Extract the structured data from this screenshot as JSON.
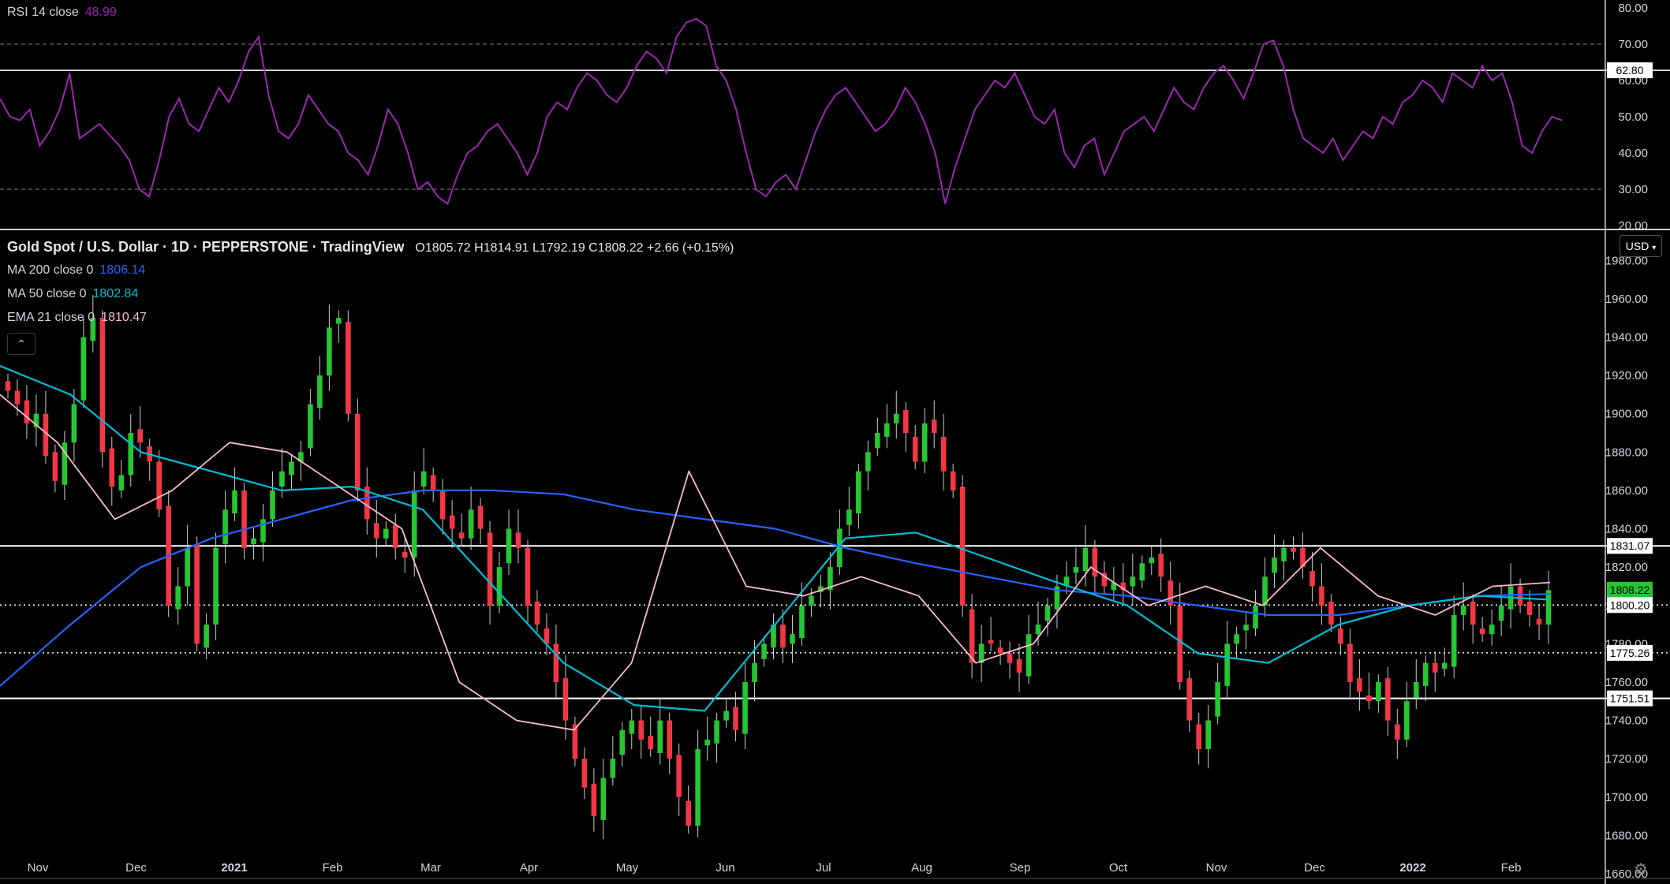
{
  "rsi_panel": {
    "label": "RSI 14 close",
    "value": "48.99",
    "value_color": "#9c27b0",
    "line_color": "#9c27b0",
    "scale": [
      "80.00",
      "70.00",
      "60.00",
      "50.00",
      "40.00",
      "30.00",
      "20.00"
    ],
    "level_tag": "62.80"
  },
  "price_panel": {
    "title": "Gold Spot / U.S. Dollar · 1D · PEPPERSTONE · TradingView",
    "ohlc": "O1805.72 H1814.91 L1792.19 C1808.22 +2.66 (+0.15%)",
    "currency_button": "USD",
    "collapse_icon": "chevron-up-icon",
    "settings_icon": "gear-icon",
    "indicators": [
      {
        "label": "MA 200 close 0",
        "value": "1806.14",
        "color": "#2962ff"
      },
      {
        "label": "MA 50 close 0",
        "value": "1802.84",
        "color": "#00bcd4"
      },
      {
        "label": "EMA 21 close 0",
        "value": "1810.47",
        "color": "#f8bbd0"
      }
    ],
    "scale": [
      "1980.00",
      "1960.00",
      "1940.00",
      "1920.00",
      "1900.00",
      "1880.00",
      "1860.00",
      "1840.00",
      "1820.00",
      "1800.00",
      "1780.00",
      "1760.00",
      "1740.00",
      "1720.00",
      "1700.00",
      "1680.00",
      "1660.00"
    ],
    "price_tags": [
      {
        "text": "1831.07",
        "bg": "#ffffff",
        "fg": "#000000"
      },
      {
        "text": "1808.22",
        "bg": "#26c632",
        "fg": "#000000"
      },
      {
        "text": "1800.20",
        "bg": "#ffffff",
        "fg": "#000000"
      },
      {
        "text": "1775.26",
        "bg": "#ffffff",
        "fg": "#000000"
      },
      {
        "text": "1751.51",
        "bg": "#ffffff",
        "fg": "#000000"
      }
    ],
    "up_color": "#26c632",
    "down_color": "#f23645"
  },
  "time_axis": [
    "Nov",
    "Dec",
    "2021",
    "Feb",
    "Mar",
    "Apr",
    "May",
    "Jun",
    "Jul",
    "Aug",
    "Sep",
    "Oct",
    "Nov",
    "Dec",
    "2022",
    "Feb"
  ],
  "chart_data": [
    {
      "type": "line",
      "name": "RSI 14 close",
      "ylim": [
        20,
        80
      ],
      "levels": {
        "upper": 70,
        "lower": 30,
        "marked": 62.8
      },
      "grid": false,
      "values": [
        55,
        50,
        49,
        52,
        42,
        46,
        52,
        62,
        44,
        46,
        48,
        45,
        42,
        38,
        30,
        28,
        38,
        50,
        55,
        48,
        46,
        52,
        58,
        54,
        60,
        68,
        72,
        56,
        46,
        44,
        48,
        56,
        52,
        48,
        46,
        40,
        38,
        34,
        42,
        52,
        48,
        40,
        30,
        32,
        28,
        26,
        34,
        40,
        42,
        46,
        48,
        44,
        40,
        34,
        40,
        50,
        54,
        52,
        58,
        62,
        60,
        56,
        54,
        58,
        64,
        68,
        66,
        62,
        72,
        76,
        77,
        75,
        64,
        60,
        52,
        40,
        30,
        28,
        32,
        34,
        30,
        38,
        46,
        52,
        56,
        58,
        54,
        50,
        46,
        48,
        52,
        58,
        54,
        48,
        40,
        26,
        36,
        44,
        52,
        56,
        60,
        58,
        62,
        56,
        50,
        48,
        52,
        40,
        36,
        42,
        44,
        34,
        40,
        46,
        48,
        50,
        46,
        52,
        58,
        54,
        52,
        58,
        62,
        64,
        60,
        55,
        62,
        70,
        71,
        64,
        52,
        44,
        42,
        40,
        44,
        38,
        42,
        46,
        44,
        50,
        48,
        54,
        56,
        60,
        58,
        54,
        62,
        60,
        58,
        64,
        60,
        62,
        54,
        42,
        40,
        46,
        50,
        49
      ]
    },
    {
      "type": "candlestick",
      "name": "Gold Spot / U.S. Dollar",
      "ylim": [
        1660,
        1990
      ],
      "close": [
        1912,
        1905,
        1895,
        1900,
        1878,
        1865,
        1885,
        1905,
        1940,
        1950,
        1880,
        1862,
        1868,
        1890,
        1885,
        1875,
        1850,
        1800,
        1810,
        1830,
        1780,
        1790,
        1830,
        1850,
        1860,
        1830,
        1835,
        1845,
        1860,
        1870,
        1875,
        1880,
        1905,
        1920,
        1945,
        1950,
        1900,
        1860,
        1845,
        1835,
        1840,
        1830,
        1825,
        1860,
        1870,
        1860,
        1845,
        1840,
        1835,
        1850,
        1840,
        1800,
        1820,
        1840,
        1830,
        1800,
        1790,
        1780,
        1760,
        1740,
        1720,
        1705,
        1690,
        1710,
        1720,
        1735,
        1740,
        1730,
        1725,
        1740,
        1720,
        1700,
        1685,
        1725,
        1730,
        1740,
        1745,
        1735,
        1760,
        1770,
        1780,
        1790,
        1778,
        1785,
        1800,
        1805,
        1810,
        1820,
        1840,
        1850,
        1870,
        1880,
        1890,
        1895,
        1900,
        1890,
        1875,
        1895,
        1890,
        1870,
        1860,
        1800,
        1770,
        1780,
        1780,
        1775,
        1770,
        1765,
        1785,
        1790,
        1800,
        1810,
        1815,
        1820,
        1830,
        1815,
        1810,
        1812,
        1808,
        1815,
        1822,
        1825,
        1815,
        1800,
        1760,
        1740,
        1725,
        1740,
        1760,
        1780,
        1785,
        1790,
        1800,
        1815,
        1825,
        1830,
        1828,
        1820,
        1810,
        1800,
        1790,
        1780,
        1760,
        1755,
        1750,
        1760,
        1740,
        1730,
        1750,
        1760,
        1770,
        1765,
        1770,
        1795,
        1800,
        1790,
        1785,
        1790,
        1800,
        1810,
        1800,
        1795,
        1790,
        1808
      ]
    },
    {
      "type": "line",
      "name": "MA 200 close 0",
      "values": [
        1758,
        1790,
        1820,
        1835,
        1845,
        1855,
        1860,
        1860,
        1858,
        1850,
        1845,
        1840,
        1830,
        1822,
        1815,
        1808,
        1805,
        1800,
        1795,
        1795,
        1800,
        1805,
        1806
      ]
    },
    {
      "type": "line",
      "name": "MA 50 close 0",
      "values": [
        1925,
        1910,
        1880,
        1870,
        1860,
        1862,
        1850,
        1810,
        1770,
        1748,
        1745,
        1790,
        1835,
        1838,
        1825,
        1812,
        1800,
        1775,
        1770,
        1790,
        1800,
        1805,
        1803
      ]
    },
    {
      "type": "line",
      "name": "EMA 21 close 0",
      "values": [
        1910,
        1885,
        1845,
        1860,
        1885,
        1880,
        1860,
        1840,
        1760,
        1740,
        1735,
        1770,
        1870,
        1810,
        1805,
        1815,
        1805,
        1770,
        1780,
        1820,
        1800,
        1810,
        1800,
        1830,
        1805,
        1795,
        1810,
        1812
      ]
    }
  ]
}
